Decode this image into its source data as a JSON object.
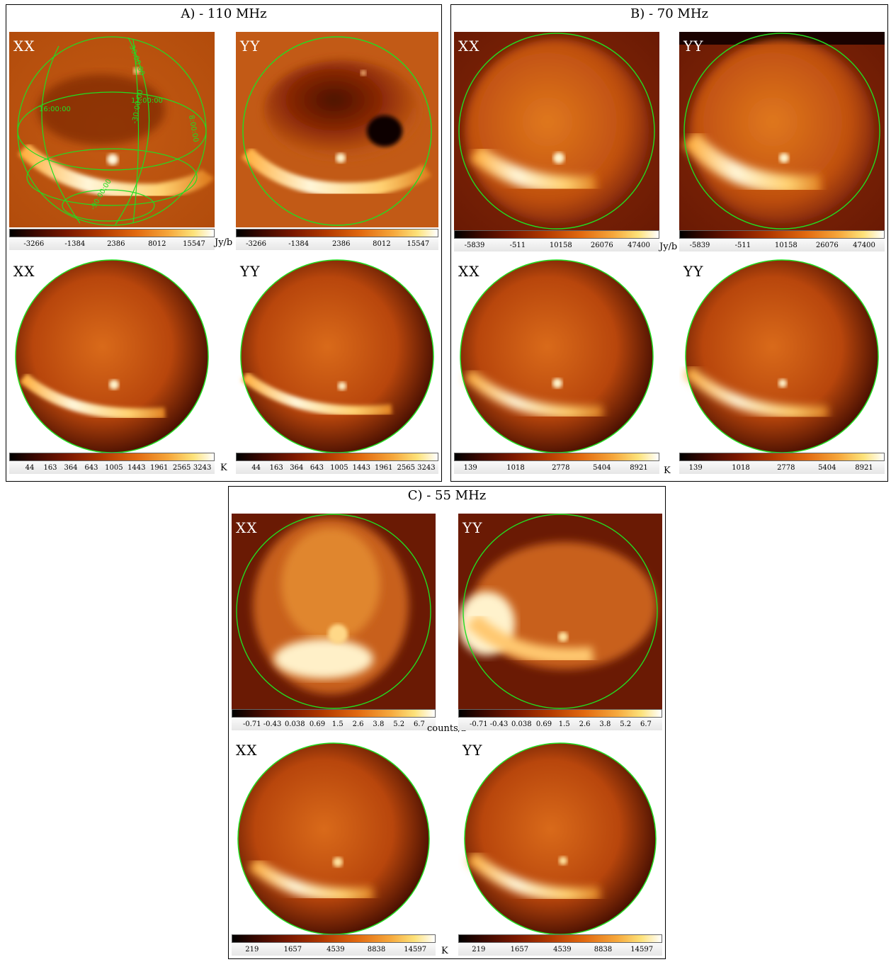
{
  "sections": [
    {
      "title": "A) - 110 MHz"
    },
    {
      "title": "B) - 70 MHz"
    },
    {
      "title": "C) - 55 MHz"
    }
  ],
  "labels": {
    "xx": "XX",
    "yy": "YY"
  },
  "units": {
    "jy": "Jy/b",
    "k": "K",
    "counts": "counts/b"
  },
  "colorbars": {
    "a_jy": [
      "-3266",
      "-1384",
      "2386",
      "8012",
      "15547"
    ],
    "a_k": [
      "44",
      "163",
      "364",
      "643",
      "1005",
      "1443",
      "1961",
      "2565",
      "3243"
    ],
    "b_jy": [
      "-5839",
      "-511",
      "10158",
      "26076",
      "47400"
    ],
    "b_k": [
      "139",
      "1018",
      "2778",
      "5404",
      "8921"
    ],
    "c_counts": [
      "-0.71",
      "-0.43",
      "0.038",
      "0.69",
      "1.5",
      "2.6",
      "3.8",
      "5.2",
      "6.7"
    ],
    "c_k": [
      "219",
      "1657",
      "4539",
      "8838",
      "14597"
    ]
  },
  "grid_labels": [
    "30:00:00",
    "12:00:00",
    "16:00:00",
    "8:00:00",
    "-30:00:00",
    "-90:00:00"
  ],
  "colors": {
    "circle": "#22dd22",
    "frame": "#000000"
  }
}
